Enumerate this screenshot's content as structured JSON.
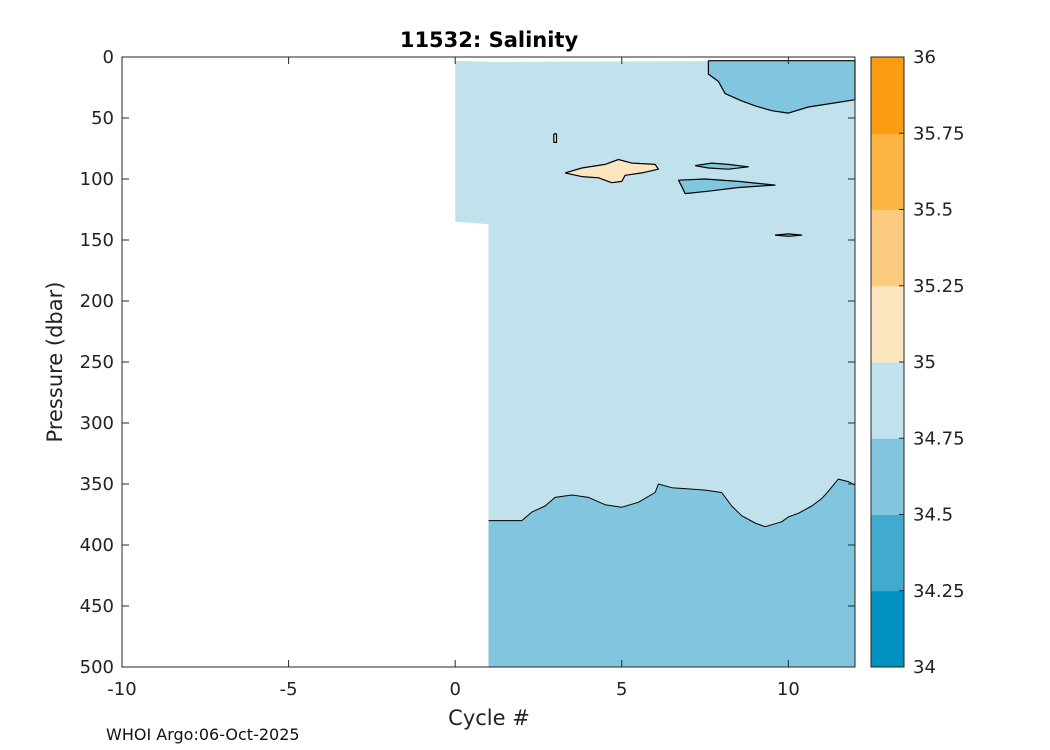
{
  "chart_data": {
    "type": "contour",
    "title": "11532:  Salinity",
    "xlabel": "Cycle #",
    "ylabel": "Pressure (dbar)",
    "xlim": [
      -10,
      12
    ],
    "ylim": [
      500,
      0
    ],
    "xticks": [
      -10,
      -5,
      0,
      5,
      10
    ],
    "yticks": [
      0,
      50,
      100,
      150,
      200,
      250,
      300,
      350,
      400,
      450,
      500
    ],
    "data_extent": {
      "x_start_shallow": 0,
      "x_start_deep": 1,
      "shallow_max_pressure": 137,
      "surface_pressure": 3
    },
    "colorbar": {
      "levels": [
        34,
        34.25,
        34.5,
        34.75,
        35,
        35.25,
        35.5,
        35.75,
        36
      ],
      "tick_labels": [
        "34",
        "34.25",
        "34.5",
        "34.75",
        "35",
        "35.25",
        "35.5",
        "35.75",
        "36"
      ],
      "colors": [
        "#0191c1",
        "#42a9cf",
        "#81c5de",
        "#c1e2ed",
        "#fce5bf",
        "#fccb7f",
        "#fcb342",
        "#fc9c10"
      ]
    },
    "contour_regions": [
      {
        "name": "deep-lower-salinity-layer",
        "band": "34.5–34.75",
        "points": [
          [
            1,
            380
          ],
          [
            2,
            380
          ],
          [
            2.3,
            373
          ],
          [
            2.7,
            368
          ],
          [
            3,
            361
          ],
          [
            3.5,
            359
          ],
          [
            4,
            361
          ],
          [
            4.5,
            367
          ],
          [
            5,
            369
          ],
          [
            5.5,
            365
          ],
          [
            6,
            357
          ],
          [
            6.1,
            350
          ],
          [
            6.5,
            353
          ],
          [
            7,
            354
          ],
          [
            7.5,
            355
          ],
          [
            8,
            357
          ],
          [
            8.3,
            368
          ],
          [
            8.6,
            376
          ],
          [
            9,
            382
          ],
          [
            9.3,
            385
          ],
          [
            9.8,
            381
          ],
          [
            10,
            377
          ],
          [
            10.3,
            374
          ],
          [
            10.7,
            368
          ],
          [
            11,
            362
          ],
          [
            11.2,
            356
          ],
          [
            11.5,
            346
          ],
          [
            11.8,
            348
          ],
          [
            12,
            351
          ],
          [
            12,
            500
          ],
          [
            1,
            500
          ]
        ]
      },
      {
        "name": "surface-fresh-patch",
        "band": "34.5–34.75",
        "points": [
          [
            7.6,
            3
          ],
          [
            12,
            3
          ],
          [
            12,
            35
          ],
          [
            11.3,
            38
          ],
          [
            10.6,
            41
          ],
          [
            10,
            46
          ],
          [
            9.5,
            44
          ],
          [
            9,
            40
          ],
          [
            8.6,
            36
          ],
          [
            8.1,
            30
          ],
          [
            7.9,
            20
          ],
          [
            7.6,
            14
          ],
          [
            7.6,
            3
          ]
        ]
      },
      {
        "name": "fresh-lens-100dbar",
        "band": "34.5–34.75",
        "points": [
          [
            6.7,
            101
          ],
          [
            7.5,
            100
          ],
          [
            8.5,
            102
          ],
          [
            9.6,
            105
          ],
          [
            8.5,
            107
          ],
          [
            7.6,
            110
          ],
          [
            6.9,
            112
          ],
          [
            6.8,
            106
          ],
          [
            6.7,
            101
          ]
        ]
      },
      {
        "name": "fresh-lens-90dbar",
        "band": "34.5–34.75",
        "points": [
          [
            7.2,
            89
          ],
          [
            7.7,
            87
          ],
          [
            8.2,
            88
          ],
          [
            8.8,
            90
          ],
          [
            8.2,
            92
          ],
          [
            7.6,
            91
          ],
          [
            7.2,
            89
          ]
        ]
      },
      {
        "name": "fresh-lens-145dbar",
        "band": "34.5–34.75",
        "points": [
          [
            9.6,
            146
          ],
          [
            10,
            145
          ],
          [
            10.4,
            146
          ],
          [
            10,
            147
          ],
          [
            9.6,
            146
          ]
        ]
      },
      {
        "name": "saline-lens-95dbar",
        "band": "35–35.25",
        "points": [
          [
            3.3,
            95
          ],
          [
            3.8,
            91
          ],
          [
            4.5,
            88
          ],
          [
            4.9,
            84
          ],
          [
            5.3,
            87
          ],
          [
            6,
            88
          ],
          [
            6.1,
            92
          ],
          [
            5.6,
            95
          ],
          [
            5.1,
            97
          ],
          [
            5,
            102
          ],
          [
            4.7,
            103
          ],
          [
            4.3,
            99
          ],
          [
            3.8,
            98
          ],
          [
            3.3,
            95
          ]
        ]
      },
      {
        "name": "saline-dot-65dbar",
        "band": "35–35.25",
        "points": [
          [
            2.96,
            63
          ],
          [
            3.04,
            63
          ],
          [
            3.04,
            70
          ],
          [
            2.96,
            70
          ],
          [
            2.96,
            63
          ]
        ]
      }
    ]
  },
  "footer": {
    "text": "WHOI Argo:06-Oct-2025"
  }
}
